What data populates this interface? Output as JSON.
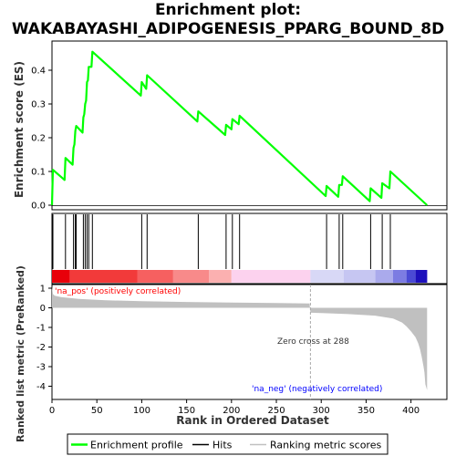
{
  "title_line1": "Enrichment plot:",
  "title_line2": "WAKABAYASHI_ADIPOGENESIS_PPARG_BOUND_8D",
  "legend": {
    "enrichment": "Enrichment profile",
    "hits": "Hits",
    "ranking": "Ranking metric scores"
  },
  "colors": {
    "enrichment_line": "#00ff00",
    "hits": "#000000",
    "ranking_fill": "#c0c0c0",
    "pos_label": "#ff0000",
    "neg_label": "#0000ff",
    "zero_line": "#aaaaaa"
  },
  "chart_data": [
    {
      "type": "line",
      "panel": "enrichment",
      "ylabel": "Enrichment score (ES)",
      "ylim": [
        -0.01,
        0.49
      ],
      "yticks": [
        "0.0",
        "0.1",
        "0.2",
        "0.3",
        "0.4"
      ],
      "ytick_values": [
        0.0,
        0.1,
        0.2,
        0.3,
        0.4
      ],
      "xlim": [
        0,
        440
      ],
      "series": [
        {
          "x": [
            0,
            1,
            14,
            15,
            23,
            24,
            25,
            26,
            27,
            34,
            35,
            36,
            37,
            38,
            39,
            40,
            41,
            44,
            45,
            99,
            100,
            105,
            106,
            162,
            163,
            193,
            194,
            200,
            201,
            208,
            209,
            305,
            306,
            319,
            320,
            323,
            324,
            354,
            355,
            367,
            368,
            376,
            377,
            418
          ],
          "y": [
            0.0,
            0.105,
            0.075,
            0.14,
            0.12,
            0.17,
            0.18,
            0.22,
            0.235,
            0.215,
            0.26,
            0.27,
            0.3,
            0.31,
            0.365,
            0.37,
            0.41,
            0.41,
            0.455,
            0.325,
            0.365,
            0.345,
            0.385,
            0.248,
            0.278,
            0.208,
            0.238,
            0.225,
            0.255,
            0.24,
            0.265,
            0.027,
            0.057,
            0.025,
            0.06,
            0.06,
            0.086,
            0.012,
            0.05,
            0.022,
            0.065,
            0.05,
            0.1,
            0.0
          ]
        }
      ]
    },
    {
      "type": "hits",
      "panel": "hits",
      "positions": [
        1,
        15,
        24,
        26,
        27,
        35,
        37,
        39,
        41,
        45,
        100,
        106,
        163,
        194,
        201,
        209,
        306,
        320,
        324,
        355,
        368,
        377
      ]
    },
    {
      "type": "area",
      "panel": "ranking",
      "ylabel": "Ranked list metric (PreRanked)",
      "xlabel": "Rank in Ordered Dataset",
      "ylim": [
        -4.5,
        1.4
      ],
      "yticks": [
        "1",
        "0",
        "-1",
        "-2",
        "-3",
        "-4"
      ],
      "ytick_values": [
        1,
        0,
        -1,
        -2,
        -3,
        -4
      ],
      "xticks": [
        "0",
        "50",
        "100",
        "150",
        "200",
        "250",
        "300",
        "350",
        "400"
      ],
      "xtick_values": [
        0,
        50,
        100,
        150,
        200,
        250,
        300,
        350,
        400
      ],
      "x": [
        0,
        1,
        3,
        10,
        30,
        60,
        100,
        150,
        200,
        250,
        287,
        288,
        300,
        330,
        360,
        380,
        390,
        395,
        400,
        405,
        408,
        410,
        412,
        414,
        415,
        416,
        418
      ],
      "values": [
        1.1,
        0.7,
        0.62,
        0.55,
        0.45,
        0.38,
        0.34,
        0.3,
        0.27,
        0.24,
        0.22,
        -0.25,
        -0.27,
        -0.32,
        -0.4,
        -0.55,
        -0.75,
        -0.95,
        -1.2,
        -1.5,
        -1.8,
        -2.1,
        -2.5,
        -3.0,
        -3.3,
        -3.9,
        -4.2
      ],
      "zero_cross": 288,
      "zero_cross_text": "Zero cross at 288",
      "pos_text": "'na_pos' (positively correlated)",
      "neg_text": "'na_neg' (negatively correlated)"
    }
  ],
  "heatbar": [
    {
      "from": 0,
      "to": 20,
      "color": "#e8000a"
    },
    {
      "from": 20,
      "to": 95,
      "color": "#f23a3a"
    },
    {
      "from": 95,
      "to": 135,
      "color": "#f66060"
    },
    {
      "from": 135,
      "to": 175,
      "color": "#f88a8a"
    },
    {
      "from": 175,
      "to": 200,
      "color": "#fbb0b0"
    },
    {
      "from": 200,
      "to": 288,
      "color": "#fcd2ee"
    },
    {
      "from": 288,
      "to": 325,
      "color": "#d8d8f6"
    },
    {
      "from": 325,
      "to": 360,
      "color": "#c6c6f2"
    },
    {
      "from": 360,
      "to": 380,
      "color": "#aaaaec"
    },
    {
      "from": 380,
      "to": 395,
      "color": "#7c7ce2"
    },
    {
      "from": 395,
      "to": 405,
      "color": "#4a4ad4"
    },
    {
      "from": 405,
      "to": 418,
      "color": "#1c10bc"
    }
  ]
}
